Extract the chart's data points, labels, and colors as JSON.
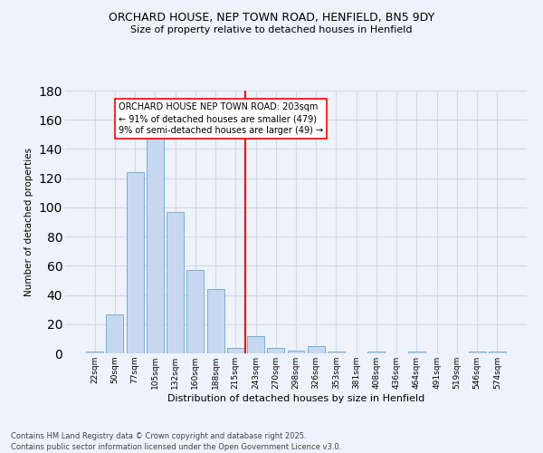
{
  "title": "ORCHARD HOUSE, NEP TOWN ROAD, HENFIELD, BN5 9DY",
  "subtitle": "Size of property relative to detached houses in Henfield",
  "xlabel": "Distribution of detached houses by size in Henfield",
  "ylabel": "Number of detached properties",
  "categories": [
    "22sqm",
    "50sqm",
    "77sqm",
    "105sqm",
    "132sqm",
    "160sqm",
    "188sqm",
    "215sqm",
    "243sqm",
    "270sqm",
    "298sqm",
    "326sqm",
    "353sqm",
    "381sqm",
    "408sqm",
    "436sqm",
    "464sqm",
    "491sqm",
    "519sqm",
    "546sqm",
    "574sqm"
  ],
  "values": [
    1,
    27,
    124,
    149,
    97,
    57,
    44,
    4,
    12,
    4,
    2,
    5,
    1,
    0,
    1,
    0,
    1,
    0,
    0,
    1,
    1
  ],
  "bar_color": "#c5d8f0",
  "bar_edge_color": "#7aafd4",
  "grid_color": "#d0d8e8",
  "background_color": "#eef2fa",
  "vline_index": 7.5,
  "vline_color": "red",
  "annotation_text": "ORCHARD HOUSE NEP TOWN ROAD: 203sqm\n← 91% of detached houses are smaller (479)\n9% of semi-detached houses are larger (49) →",
  "annotation_box_color": "white",
  "annotation_box_edge": "red",
  "footnote": "Contains HM Land Registry data © Crown copyright and database right 2025.\nContains public sector information licensed under the Open Government Licence v3.0.",
  "ylim": [
    0,
    180
  ],
  "yticks": [
    0,
    20,
    40,
    60,
    80,
    100,
    120,
    140,
    160,
    180
  ]
}
